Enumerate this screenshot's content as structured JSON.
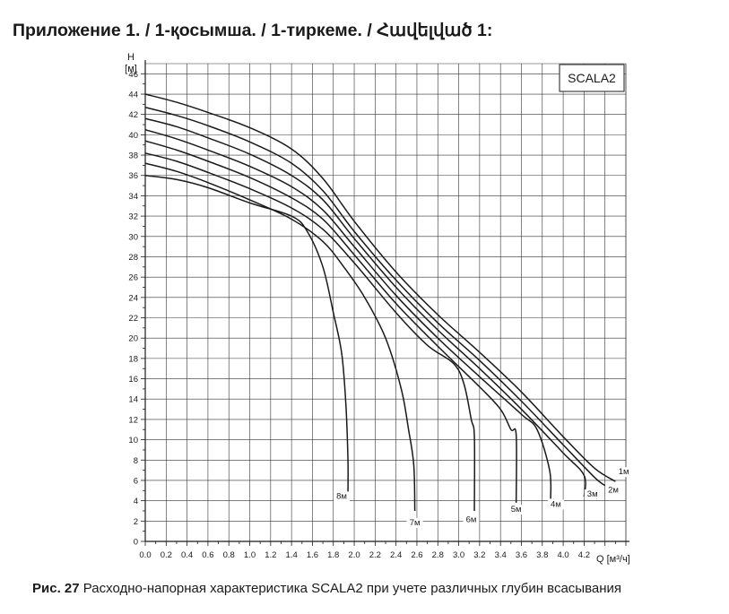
{
  "heading": "Приложение 1. / 1-қосымша. / 1-тиркеме. / Հավելված 1:",
  "caption": {
    "label": "Рис. 27",
    "text": "Расходно-напорная характеристика SCALA2 при учете различных глубин всасывания"
  },
  "chart_data": {
    "type": "line",
    "legend_box": "SCALA2",
    "y_axis_title": "H",
    "y_axis_unit": "[м]",
    "x_axis_label": "Q [м³/ч]",
    "xlim": [
      0,
      4.6
    ],
    "ylim": [
      0,
      47
    ],
    "x_ticks": [
      "0.0",
      "0.2",
      "0.4",
      "0.6",
      "0.8",
      "1.0",
      "1.2",
      "1.4",
      "1.6",
      "1.8",
      "2.0",
      "2.2",
      "2.4",
      "2.6",
      "2.8",
      "3.0",
      "3.2",
      "3.4",
      "3.6",
      "3.8",
      "4.0",
      "4.2"
    ],
    "y_ticks": [
      "0",
      "2",
      "4",
      "6",
      "8",
      "10",
      "12",
      "14",
      "16",
      "18",
      "20",
      "22",
      "24",
      "26",
      "28",
      "30",
      "32",
      "34",
      "36",
      "38",
      "40",
      "42",
      "44",
      "46"
    ],
    "grid": true,
    "series": [
      {
        "name": "1м",
        "x": [
          0,
          0.3,
          0.6,
          1.0,
          1.4,
          1.7,
          2.0,
          2.4,
          2.8,
          3.2,
          3.6,
          4.0,
          4.3,
          4.5
        ],
        "y": [
          44,
          43.2,
          42.2,
          40.7,
          38.6,
          35.7,
          31.5,
          26.5,
          22.3,
          18.6,
          14.7,
          10.3,
          7.2,
          5.9
        ]
      },
      {
        "name": "2м",
        "x": [
          0,
          0.3,
          0.6,
          1.0,
          1.4,
          1.7,
          2.0,
          2.4,
          2.8,
          3.2,
          3.6,
          4.0,
          4.3,
          4.4
        ],
        "y": [
          42.7,
          41.9,
          40.9,
          39.3,
          37.2,
          34.5,
          30.5,
          25.7,
          21.5,
          17.8,
          13.8,
          9.5,
          6.3,
          5.5
        ]
      },
      {
        "name": "3м",
        "x": [
          0,
          0.3,
          0.6,
          1.0,
          1.4,
          1.7,
          2.0,
          2.4,
          2.8,
          3.2,
          3.6,
          4.0,
          4.2,
          4.2
        ],
        "y": [
          41.6,
          40.8,
          39.7,
          38.1,
          36.0,
          33.6,
          29.8,
          25.0,
          20.8,
          17.0,
          13.0,
          8.7,
          6.5,
          4.4
        ]
      },
      {
        "name": "4м",
        "x": [
          0,
          0.3,
          0.6,
          1.0,
          1.4,
          1.7,
          2.0,
          2.4,
          2.8,
          3.2,
          3.6,
          3.75,
          3.87,
          3.88
        ],
        "y": [
          40.5,
          39.6,
          38.5,
          36.9,
          34.9,
          32.6,
          29.0,
          24.2,
          20.0,
          16.2,
          12.5,
          11.0,
          7.0,
          4.2
        ]
      },
      {
        "name": "5м",
        "x": [
          0,
          0.3,
          0.6,
          1.0,
          1.4,
          1.7,
          2.0,
          2.4,
          2.8,
          3.2,
          3.4,
          3.5,
          3.55,
          3.55
        ],
        "y": [
          39.4,
          38.5,
          37.4,
          35.8,
          33.8,
          31.7,
          28.2,
          23.4,
          19.2,
          15.2,
          13.0,
          11.0,
          10.5,
          3.8
        ]
      },
      {
        "name": "6м",
        "x": [
          0,
          0.3,
          0.6,
          1.0,
          1.4,
          1.7,
          2.0,
          2.4,
          2.7,
          2.95,
          3.05,
          3.12,
          3.15,
          3.15
        ],
        "y": [
          38.2,
          37.4,
          36.3,
          34.7,
          32.8,
          30.7,
          27.4,
          22.5,
          19.3,
          17.5,
          15.5,
          12.0,
          10.3,
          3.0
        ]
      },
      {
        "name": "7м",
        "x": [
          0,
          0.3,
          0.6,
          1.0,
          1.4,
          1.7,
          1.9,
          2.1,
          2.3,
          2.45,
          2.52,
          2.57,
          2.58
        ],
        "y": [
          37.2,
          36.4,
          35.3,
          33.6,
          31.7,
          29.5,
          27.0,
          24.0,
          20.0,
          15.0,
          11.0,
          7.5,
          3.0
        ]
      },
      {
        "name": "8м",
        "x": [
          0,
          0.3,
          0.6,
          1.0,
          1.4,
          1.55,
          1.7,
          1.8,
          1.88,
          1.92,
          1.94,
          1.94
        ],
        "y": [
          36.0,
          35.6,
          34.8,
          33.3,
          32.0,
          30.5,
          27.0,
          22.5,
          18.5,
          13.5,
          8.0,
          4.8
        ]
      }
    ],
    "curve_labels": [
      {
        "name": "1м",
        "x": 4.58,
        "y": 6.6
      },
      {
        "name": "2м",
        "x": 4.48,
        "y": 4.8
      },
      {
        "name": "3м",
        "x": 4.28,
        "y": 4.4
      },
      {
        "name": "4м",
        "x": 3.93,
        "y": 3.4
      },
      {
        "name": "5м",
        "x": 3.55,
        "y": 2.9
      },
      {
        "name": "6м",
        "x": 3.12,
        "y": 1.9
      },
      {
        "name": "7м",
        "x": 2.58,
        "y": 1.6
      },
      {
        "name": "8м",
        "x": 1.88,
        "y": 4.2
      }
    ]
  }
}
